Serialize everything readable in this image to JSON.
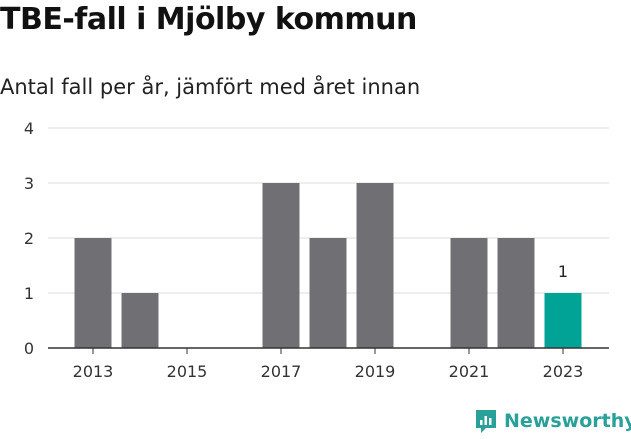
{
  "title": "TBE-fall i Mjölby kommun",
  "subtitle": "Antal fall per år, jämfört med året innan",
  "brand": {
    "name": "Newsworthy",
    "icon": "newsworthy-logo-icon",
    "color": "#2aa198"
  },
  "colors": {
    "bar": "#706f74",
    "highlight": "#00a396",
    "grid": "#dcdcdc",
    "axis": "#333333"
  },
  "chart_data": {
    "type": "bar",
    "categories": [
      "2013",
      "2014",
      "2015",
      "2016",
      "2017",
      "2018",
      "2019",
      "2020",
      "2021",
      "2022",
      "2023"
    ],
    "values": [
      2,
      1,
      0,
      0,
      3,
      2,
      3,
      0,
      2,
      2,
      1
    ],
    "x_tick_labels": [
      "2013",
      "2015",
      "2017",
      "2019",
      "2021",
      "2023"
    ],
    "y_ticks": [
      0,
      1,
      2,
      3,
      4
    ],
    "ylim": [
      0,
      4
    ],
    "grid": true,
    "highlight_category": "2023",
    "data_labels": [
      {
        "category": "2023",
        "text": "1"
      }
    ]
  }
}
